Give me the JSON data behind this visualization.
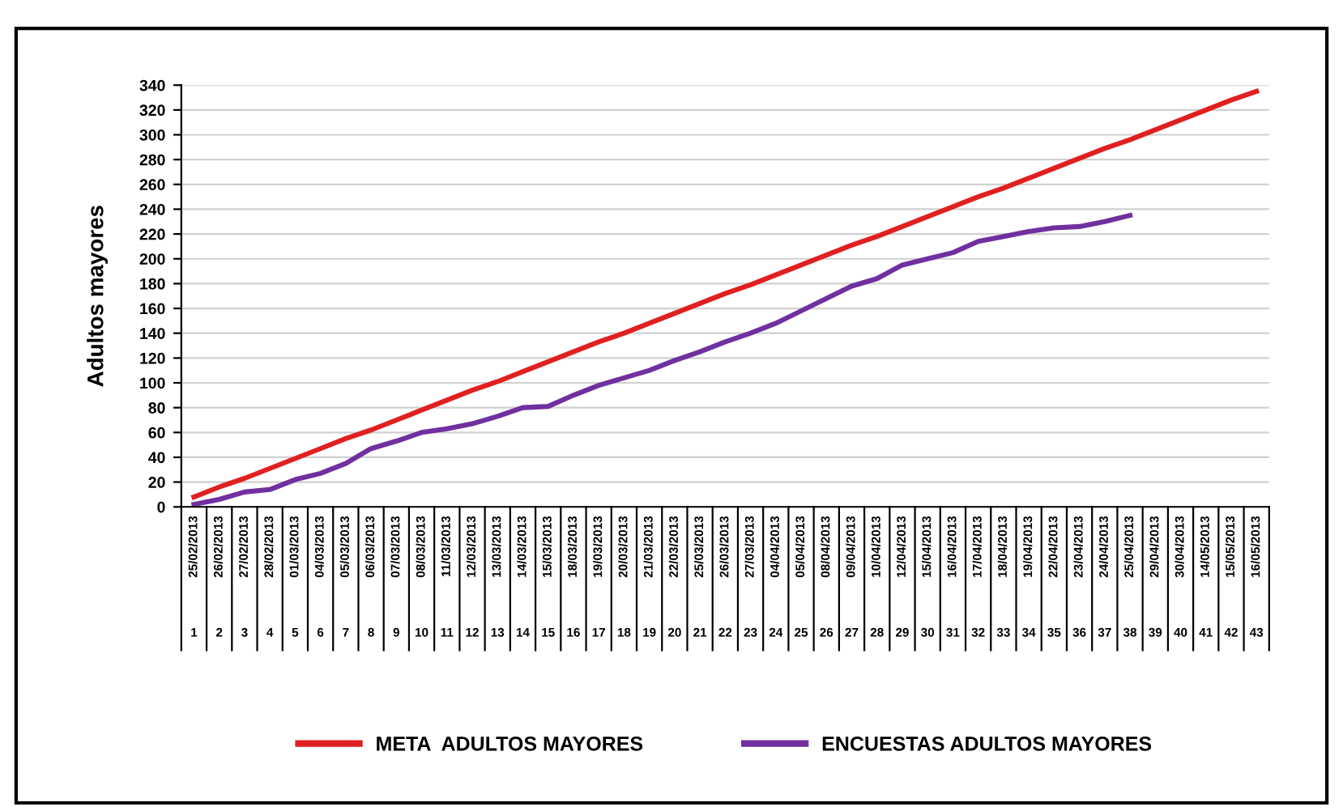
{
  "chart_data": {
    "type": "line",
    "ylabel": "Adultos mayores",
    "categories": [
      "25/02/2013\n1",
      "26/02/2013\n2",
      "27/02/2013\n3",
      "28/02/2013\n4",
      "01/03/2013\n5",
      "04/03/2013\n6",
      "05/03/2013\n7",
      "06/03/2013\n8",
      "07/03/2013\n9",
      "08/03/2013\n10",
      "11/03/2013\n11",
      "12/03/2013\n12",
      "13/03/2013\n13",
      "14/03/2013\n14",
      "15/03/2013\n15",
      "18/03/2013\n16",
      "19/03/2013\n17",
      "20/03/2013\n18",
      "21/03/2013\n19",
      "22/03/2013\n20",
      "25/03/2013\n21",
      "26/03/2013\n22",
      "27/03/2013\n23",
      "04/04/2013\n24",
      "05/04/2013\n25",
      "08/04/2013\n26",
      "09/04/2013\n27",
      "10/04/2013\n28",
      "12/04/2013\n29",
      "15/04/2013\n30",
      "16/04/2013\n31",
      "17/04/2013\n32",
      "18/04/2013\n33",
      "19/04/2013\n34",
      "22/04/2013\n35",
      "23/04/2013\n36",
      "24/04/2013\n37",
      "25/04/2013\n38",
      "29/04/2013\n39",
      "30/04/2013\n40",
      "14/05/2013\n41",
      "15/05/2013\n42",
      "16/05/2013\n43"
    ],
    "series": [
      {
        "name": "META  ADULTOS MAYORES",
        "color": "#e02020",
        "values": [
          8,
          16,
          23,
          31,
          39,
          47,
          55,
          62,
          70,
          78,
          86,
          94,
          101,
          109,
          117,
          125,
          133,
          140,
          148,
          156,
          164,
          172,
          179,
          187,
          195,
          203,
          211,
          218,
          226,
          234,
          242,
          250,
          257,
          265,
          273,
          281,
          289,
          296,
          304,
          312,
          320,
          328,
          335
        ]
      },
      {
        "name": "ENCUESTAS ADULTOS MAYORES",
        "color": "#7030a0",
        "values": [
          2,
          6,
          12,
          14,
          22,
          27,
          35,
          47,
          53,
          60,
          63,
          67,
          73,
          80,
          81,
          90,
          98,
          104,
          110,
          118,
          125,
          133,
          140,
          148,
          158,
          168,
          178,
          184,
          195,
          200,
          205,
          214,
          218,
          222,
          225,
          226,
          230,
          235,
          null,
          null,
          null,
          null,
          null
        ]
      }
    ],
    "ylim": [
      0,
      340
    ],
    "yticks": [
      0,
      20,
      40,
      60,
      80,
      100,
      120,
      140,
      160,
      180,
      200,
      220,
      240,
      260,
      280,
      300,
      320,
      340
    ],
    "grid": "y",
    "legend": "bottom",
    "marker": "none",
    "line_style": "solid"
  }
}
